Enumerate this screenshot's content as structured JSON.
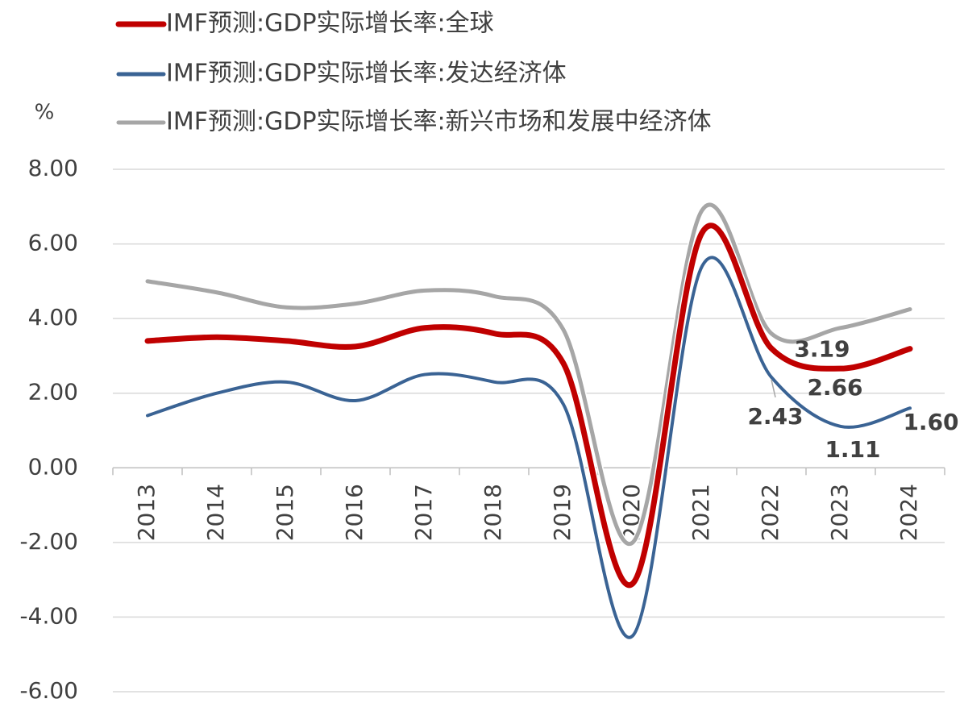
{
  "chart_data": {
    "type": "line",
    "y_label": "%",
    "categories": [
      "2013",
      "2014",
      "2015",
      "2016",
      "2017",
      "2018",
      "2019",
      "2020",
      "2021",
      "2022",
      "2023",
      "2024"
    ],
    "series": [
      {
        "name": "IMF预测:GDP实际增长率:新兴市场和发展中经济体",
        "color": "#a6a6a6",
        "values": [
          5.0,
          4.7,
          4.3,
          4.4,
          4.75,
          4.6,
          3.7,
          -2.0,
          6.9,
          3.6,
          3.75,
          4.25
        ]
      },
      {
        "name": "IMF预测:GDP实际增长率:发达经济体",
        "color": "#3a6394",
        "values": [
          1.4,
          2.0,
          2.3,
          1.8,
          2.5,
          2.3,
          1.7,
          -4.5,
          5.4,
          2.43,
          1.11,
          1.6
        ],
        "value_labels": [
          null,
          null,
          null,
          null,
          null,
          null,
          null,
          null,
          null,
          "2.43",
          "1.11",
          "1.60"
        ]
      },
      {
        "name": "IMF预测:GDP实际增长率:全球",
        "color": "#c00000",
        "values": [
          3.4,
          3.5,
          3.4,
          3.25,
          3.75,
          3.6,
          2.8,
          -3.1,
          6.3,
          3.2,
          2.66,
          3.19
        ],
        "value_labels": [
          null,
          null,
          null,
          null,
          null,
          null,
          null,
          null,
          null,
          null,
          "2.66",
          "3.19"
        ]
      }
    ],
    "ylim": [
      -6,
      8
    ],
    "yticks": [
      {
        "value": 8,
        "label": "8.00"
      },
      {
        "value": 6,
        "label": "6.00"
      },
      {
        "value": 4,
        "label": "4.00"
      },
      {
        "value": 2,
        "label": "2.00"
      },
      {
        "value": 0,
        "label": "0.00"
      },
      {
        "value": -2,
        "label": "-2.00"
      },
      {
        "value": -4,
        "label": "-4.00"
      },
      {
        "value": -6,
        "label": "-6.00"
      }
    ],
    "grid": true
  }
}
